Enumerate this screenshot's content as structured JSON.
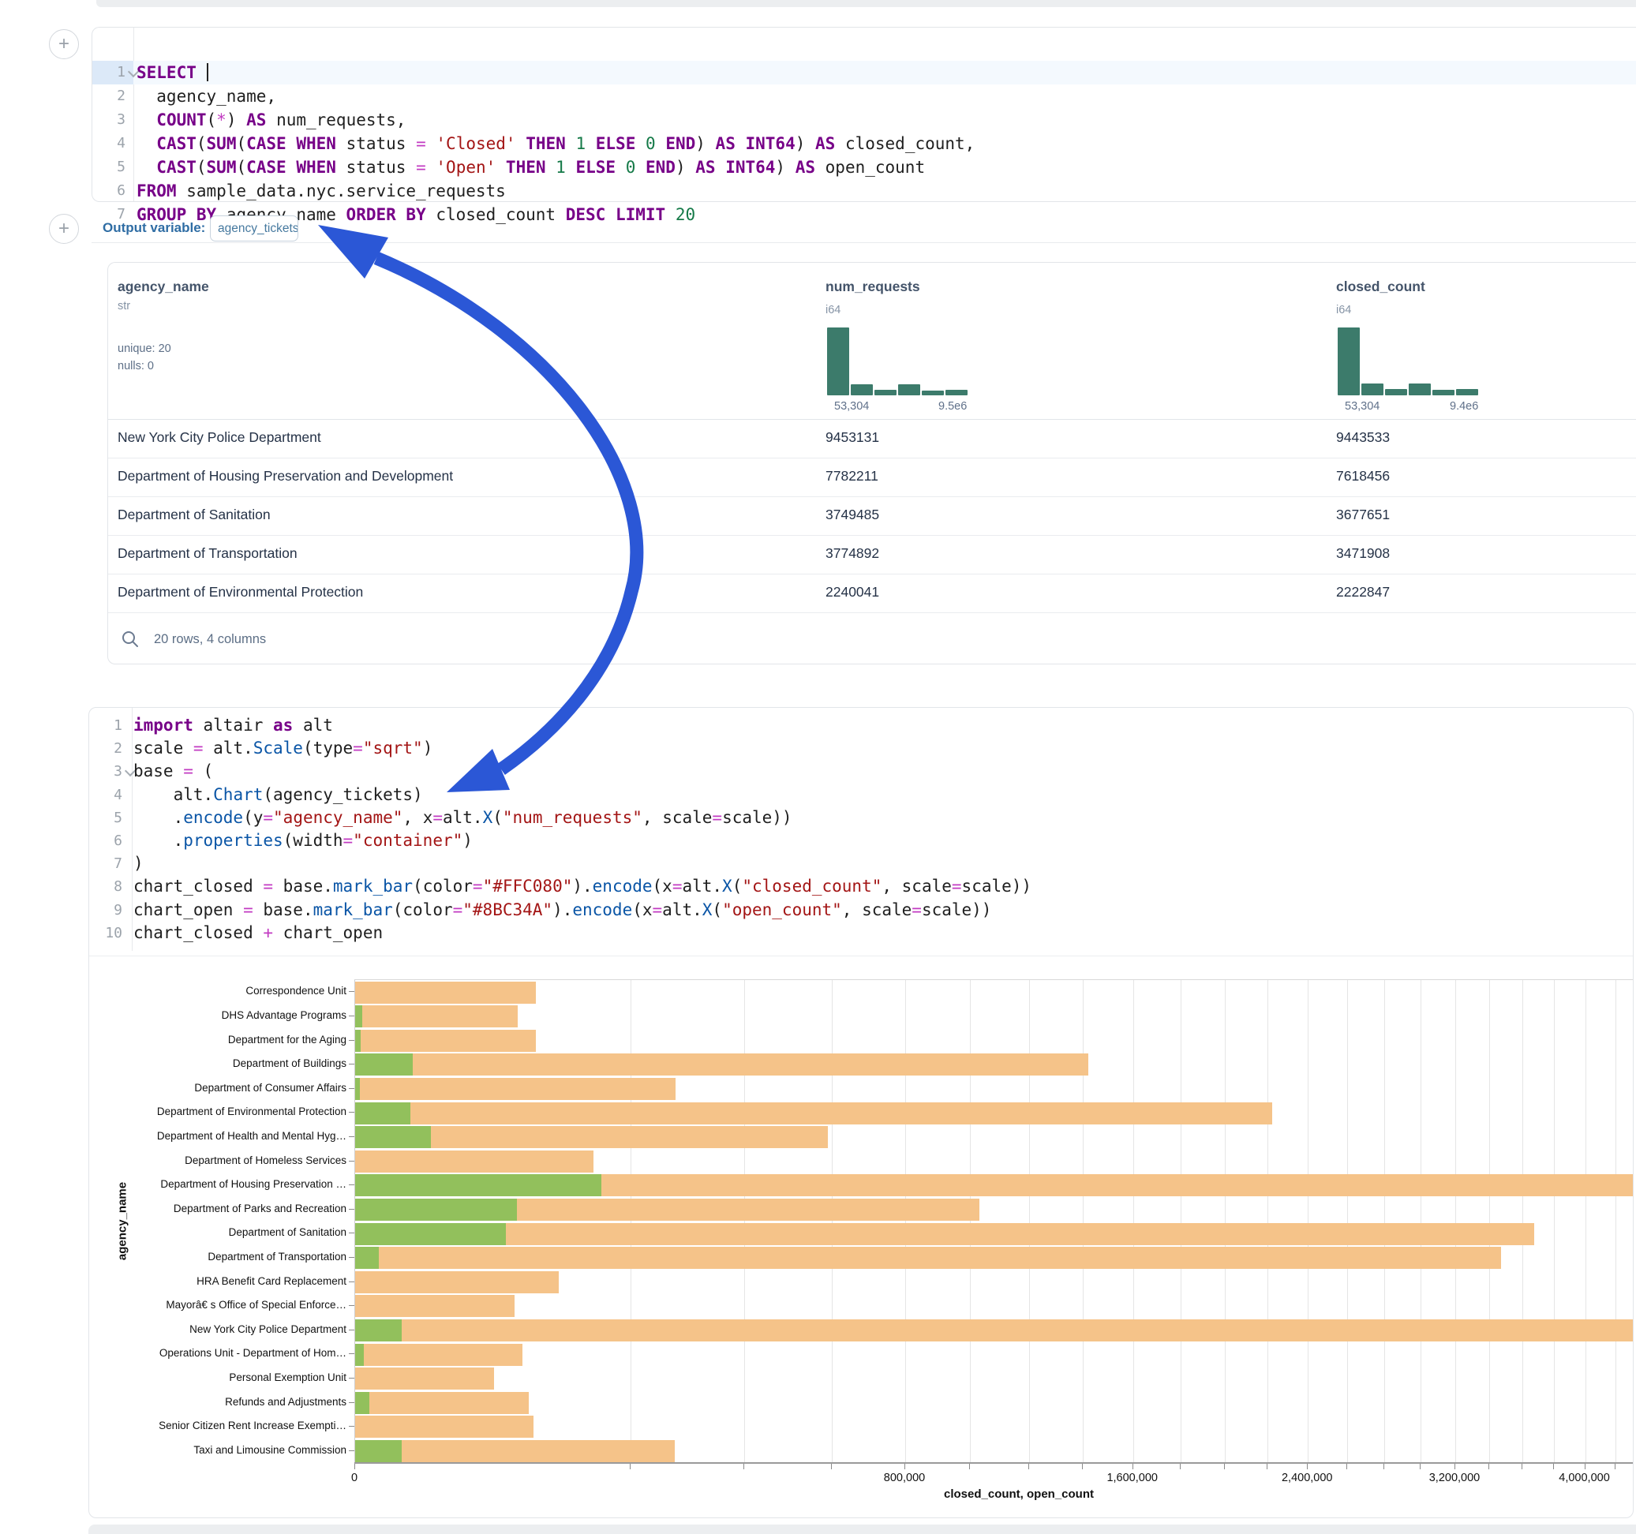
{
  "colors": {
    "arrow_blue": "#2B57D6",
    "hist_teal": "#3C7B6B",
    "bar_closed_orange": "#F5C389",
    "bar_open_green": "#92C05C",
    "closed_color_code": "#FFC080",
    "open_color_code": "#8BC34A"
  },
  "sql_cell": {
    "lines": [
      {
        "num": "1",
        "fold": true,
        "active": true,
        "tokens": [
          [
            "k",
            "SELECT"
          ],
          [
            "d",
            " "
          ],
          [
            "caret",
            ""
          ]
        ]
      },
      {
        "num": "2",
        "tokens": [
          [
            "d",
            "  agency_name,"
          ]
        ]
      },
      {
        "num": "3",
        "tokens": [
          [
            "d",
            "  "
          ],
          [
            "k",
            "COUNT"
          ],
          [
            "d",
            "("
          ],
          [
            "o",
            "*"
          ],
          [
            "d",
            ") "
          ],
          [
            "k",
            "AS"
          ],
          [
            "d",
            " num_requests,"
          ]
        ]
      },
      {
        "num": "4",
        "tokens": [
          [
            "d",
            "  "
          ],
          [
            "k",
            "CAST"
          ],
          [
            "d",
            "("
          ],
          [
            "k",
            "SUM"
          ],
          [
            "d",
            "("
          ],
          [
            "k",
            "CASE"
          ],
          [
            "d",
            " "
          ],
          [
            "k",
            "WHEN"
          ],
          [
            "d",
            " status "
          ],
          [
            "o",
            "="
          ],
          [
            "d",
            " "
          ],
          [
            "s",
            "'Closed'"
          ],
          [
            "d",
            " "
          ],
          [
            "k",
            "THEN"
          ],
          [
            "d",
            " "
          ],
          [
            "n",
            "1"
          ],
          [
            "d",
            " "
          ],
          [
            "k",
            "ELSE"
          ],
          [
            "d",
            " "
          ],
          [
            "n",
            "0"
          ],
          [
            "d",
            " "
          ],
          [
            "k",
            "END"
          ],
          [
            "d",
            ") "
          ],
          [
            "k",
            "AS"
          ],
          [
            "d",
            " "
          ],
          [
            "k",
            "INT64"
          ],
          [
            "d",
            ") "
          ],
          [
            "k",
            "AS"
          ],
          [
            "d",
            " closed_count,"
          ]
        ]
      },
      {
        "num": "5",
        "tokens": [
          [
            "d",
            "  "
          ],
          [
            "k",
            "CAST"
          ],
          [
            "d",
            "("
          ],
          [
            "k",
            "SUM"
          ],
          [
            "d",
            "("
          ],
          [
            "k",
            "CASE"
          ],
          [
            "d",
            " "
          ],
          [
            "k",
            "WHEN"
          ],
          [
            "d",
            " status "
          ],
          [
            "o",
            "="
          ],
          [
            "d",
            " "
          ],
          [
            "s",
            "'Open'"
          ],
          [
            "d",
            " "
          ],
          [
            "k",
            "THEN"
          ],
          [
            "d",
            " "
          ],
          [
            "n",
            "1"
          ],
          [
            "d",
            " "
          ],
          [
            "k",
            "ELSE"
          ],
          [
            "d",
            " "
          ],
          [
            "n",
            "0"
          ],
          [
            "d",
            " "
          ],
          [
            "k",
            "END"
          ],
          [
            "d",
            ") "
          ],
          [
            "k",
            "AS"
          ],
          [
            "d",
            " "
          ],
          [
            "k",
            "INT64"
          ],
          [
            "d",
            ") "
          ],
          [
            "k",
            "AS"
          ],
          [
            "d",
            " open_count"
          ]
        ]
      },
      {
        "num": "6",
        "tokens": [
          [
            "k",
            "FROM"
          ],
          [
            "d",
            " sample_data.nyc.service_requests"
          ]
        ]
      },
      {
        "num": "7",
        "tokens": [
          [
            "k",
            "GROUP"
          ],
          [
            "d",
            " "
          ],
          [
            "k",
            "BY"
          ],
          [
            "d",
            " agency_name "
          ],
          [
            "k",
            "ORDER"
          ],
          [
            "d",
            " "
          ],
          [
            "k",
            "BY"
          ],
          [
            "d",
            " closed_count "
          ],
          [
            "k",
            "DESC"
          ],
          [
            "d",
            " "
          ],
          [
            "k",
            "LIMIT"
          ],
          [
            "d",
            " "
          ],
          [
            "n",
            "20"
          ]
        ]
      }
    ]
  },
  "output_bar": {
    "label": "Output variable:",
    "variable": "agency_tickets"
  },
  "table": {
    "columns": [
      {
        "name": "agency_name",
        "type": "str",
        "stats": [
          "unique: 20",
          "nulls: 0"
        ]
      },
      {
        "name": "num_requests",
        "type": "i64",
        "hist": {
          "bars": [
            1,
            0.16,
            0.08,
            0.16,
            0.07,
            0.08
          ],
          "min_label": "53,304",
          "max_label": "9.5e6"
        }
      },
      {
        "name": "closed_count",
        "type": "i64",
        "hist": {
          "bars": [
            1,
            0.17,
            0.09,
            0.17,
            0.08,
            0.09
          ],
          "min_label": "53,304",
          "max_label": "9.4e6"
        }
      }
    ],
    "rows": [
      [
        "New York City Police Department",
        "9453131",
        "9443533"
      ],
      [
        "Department of Housing Preservation and Development",
        "7782211",
        "7618456"
      ],
      [
        "Department of Sanitation",
        "3749485",
        "3677651"
      ],
      [
        "Department of Transportation",
        "3774892",
        "3471908"
      ],
      [
        "Department of Environmental Protection",
        "2240041",
        "2222847"
      ]
    ],
    "footer": "20 rows, 4 columns"
  },
  "python_cell": {
    "lines": [
      {
        "num": "1",
        "tokens": [
          [
            "k",
            "import"
          ],
          [
            "d",
            " altair "
          ],
          [
            "k",
            "as"
          ],
          [
            "d",
            " alt"
          ]
        ]
      },
      {
        "num": "2",
        "tokens": [
          [
            "d",
            "scale "
          ],
          [
            "o",
            "="
          ],
          [
            "d",
            " alt."
          ],
          [
            "b",
            "Scale"
          ],
          [
            "d",
            "(type"
          ],
          [
            "o",
            "="
          ],
          [
            "s",
            "\"sqrt\""
          ],
          [
            "d",
            ")"
          ]
        ]
      },
      {
        "num": "3",
        "fold": true,
        "tokens": [
          [
            "d",
            "base "
          ],
          [
            "o",
            "="
          ],
          [
            "d",
            " ("
          ]
        ]
      },
      {
        "num": "4",
        "tokens": [
          [
            "d",
            "    alt."
          ],
          [
            "b",
            "Chart"
          ],
          [
            "d",
            "(agency_tickets)"
          ]
        ]
      },
      {
        "num": "5",
        "tokens": [
          [
            "d",
            "    ."
          ],
          [
            "b",
            "encode"
          ],
          [
            "d",
            "(y"
          ],
          [
            "o",
            "="
          ],
          [
            "s",
            "\"agency_name\""
          ],
          [
            "d",
            ", x"
          ],
          [
            "o",
            "="
          ],
          [
            "d",
            "alt."
          ],
          [
            "b",
            "X"
          ],
          [
            "d",
            "("
          ],
          [
            "s",
            "\"num_requests\""
          ],
          [
            "d",
            ", scale"
          ],
          [
            "o",
            "="
          ],
          [
            "d",
            "scale))"
          ]
        ]
      },
      {
        "num": "6",
        "tokens": [
          [
            "d",
            "    ."
          ],
          [
            "b",
            "properties"
          ],
          [
            "d",
            "(width"
          ],
          [
            "o",
            "="
          ],
          [
            "s",
            "\"container\""
          ],
          [
            "d",
            ")"
          ]
        ]
      },
      {
        "num": "7",
        "tokens": [
          [
            "d",
            ")"
          ]
        ]
      },
      {
        "num": "8",
        "tokens": [
          [
            "d",
            "chart_closed "
          ],
          [
            "o",
            "="
          ],
          [
            "d",
            " base."
          ],
          [
            "b",
            "mark_bar"
          ],
          [
            "d",
            "(color"
          ],
          [
            "o",
            "="
          ],
          [
            "s",
            "\"#FFC080\""
          ],
          [
            "d",
            ")."
          ],
          [
            "b",
            "encode"
          ],
          [
            "d",
            "(x"
          ],
          [
            "o",
            "="
          ],
          [
            "d",
            "alt."
          ],
          [
            "b",
            "X"
          ],
          [
            "d",
            "("
          ],
          [
            "s",
            "\"closed_count\""
          ],
          [
            "d",
            ", scale"
          ],
          [
            "o",
            "="
          ],
          [
            "d",
            "scale))"
          ]
        ]
      },
      {
        "num": "9",
        "tokens": [
          [
            "d",
            "chart_open "
          ],
          [
            "o",
            "="
          ],
          [
            "d",
            " base."
          ],
          [
            "b",
            "mark_bar"
          ],
          [
            "d",
            "(color"
          ],
          [
            "o",
            "="
          ],
          [
            "s",
            "\"#8BC34A\""
          ],
          [
            "d",
            ")."
          ],
          [
            "b",
            "encode"
          ],
          [
            "d",
            "(x"
          ],
          [
            "o",
            "="
          ],
          [
            "d",
            "alt."
          ],
          [
            "b",
            "X"
          ],
          [
            "d",
            "("
          ],
          [
            "s",
            "\"open_count\""
          ],
          [
            "d",
            ", scale"
          ],
          [
            "o",
            "="
          ],
          [
            "d",
            "scale))"
          ]
        ]
      },
      {
        "num": "10",
        "tokens": [
          [
            "d",
            "chart_closed "
          ],
          [
            "o",
            "+"
          ],
          [
            "d",
            " chart_open"
          ]
        ]
      }
    ]
  },
  "chart_data": {
    "type": "bar",
    "orientation": "horizontal",
    "x_scale": "sqrt",
    "title": "",
    "xlabel": "closed_count, open_count",
    "ylabel": "agency_name",
    "legend": "none",
    "grid": true,
    "categories": [
      "Correspondence Unit",
      "DHS Advantage Programs",
      "Department for the Aging",
      "Department of Buildings",
      "Department of Consumer Affairs",
      "Department of Environmental Protection",
      "Department of Health and Mental Hyg…",
      "Department of Homeless Services",
      "Department of Housing Preservation …",
      "Department of Parks and Recreation",
      "Department of Sanitation",
      "Department of Transportation",
      "HRA Benefit Card Replacement",
      "Mayorâ€ s Office of Special Enforce…",
      "New York City Police Department",
      "Operations Unit - Department of Hom…",
      "Personal Exemption Unit",
      "Refunds and Adjustments",
      "Senior Citizen Rent Increase Exempti…",
      "Taxi and Limousine Commission"
    ],
    "series": [
      {
        "name": "closed_count",
        "color": "#F5C389",
        "values": [
          86000,
          70000,
          86000,
          1420000,
          271000,
          2222847,
          590000,
          150000,
          7618456,
          1030000,
          3677651,
          3471908,
          110000,
          67000,
          9443533,
          74000,
          51000,
          80000,
          84000,
          270000
        ]
      },
      {
        "name": "open_count",
        "color": "#92C05C",
        "values": [
          0,
          120,
          80,
          8800,
          60,
          8000,
          15200,
          0,
          160000,
          69000,
          60000,
          1500,
          0,
          0,
          5700,
          200,
          0,
          550,
          0,
          5700
        ]
      }
    ],
    "x_ticks": [
      {
        "v": 0,
        "label": "0"
      },
      {
        "v": 800000,
        "label": "800,000"
      },
      {
        "v": 1600000,
        "label": "1,600,000"
      },
      {
        "v": 2400000,
        "label": "2,400,000"
      },
      {
        "v": 3200000,
        "label": "3,200,000"
      },
      {
        "v": 4000000,
        "label": "4,000,000"
      }
    ],
    "gridline_step": 200000,
    "gridline_max": 4600000,
    "x_pixels_per_sqrt_unit": 0.77927
  }
}
